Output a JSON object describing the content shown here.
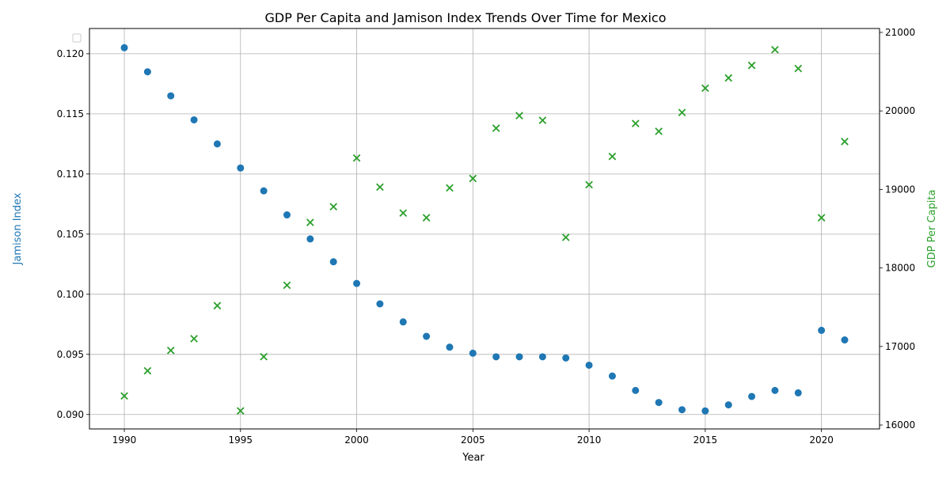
{
  "chart_data": {
    "type": "scatter",
    "title": "GDP Per Capita and Jamison Index Trends Over Time for Mexico",
    "xlabel": "Year",
    "ylabel_left": "Jamison Index",
    "ylabel_right": "GDP Per Capita",
    "xlim": [
      1988.5,
      2022.5
    ],
    "ylim_left": [
      0.0888,
      0.1221
    ],
    "ylim_right": [
      15950,
      21050
    ],
    "x_ticks": [
      1990,
      1995,
      2000,
      2005,
      2010,
      2015,
      2020
    ],
    "x_tick_labels": [
      "1990",
      "1995",
      "2000",
      "2005",
      "2010",
      "2015",
      "2020"
    ],
    "y_left_ticks": [
      0.09,
      0.095,
      0.1,
      0.105,
      0.11,
      0.115,
      0.12
    ],
    "y_left_tick_labels": [
      "0.090",
      "0.095",
      "0.100",
      "0.105",
      "0.110",
      "0.115",
      "0.120"
    ],
    "y_right_ticks": [
      16000,
      17000,
      18000,
      19000,
      20000,
      21000
    ],
    "y_right_tick_labels": [
      "16000",
      "17000",
      "18000",
      "19000",
      "20000",
      "21000"
    ],
    "grid": true,
    "legend": "top-left (empty)",
    "x": [
      1990,
      1991,
      1992,
      1993,
      1994,
      1995,
      1996,
      1997,
      1998,
      1999,
      2000,
      2001,
      2002,
      2003,
      2004,
      2005,
      2006,
      2007,
      2008,
      2009,
      2010,
      2011,
      2012,
      2013,
      2014,
      2015,
      2016,
      2017,
      2018,
      2019,
      2020,
      2021
    ],
    "series": [
      {
        "name": "Jamison Index",
        "axis": "left",
        "marker": "circle",
        "color": "#1f77b4",
        "values": [
          0.1205,
          0.1185,
          0.1165,
          0.1145,
          0.1125,
          0.1105,
          0.1086,
          0.1066,
          0.1046,
          0.1027,
          0.1009,
          0.0992,
          0.0977,
          0.0965,
          0.0956,
          0.0951,
          0.0948,
          0.0948,
          0.0948,
          0.0947,
          0.0941,
          0.0932,
          0.092,
          0.091,
          0.0904,
          0.0903,
          0.0908,
          0.0915,
          0.092,
          0.0918,
          0.097,
          0.0962
        ]
      },
      {
        "name": "GDP Per Capita",
        "axis": "right",
        "marker": "x",
        "color": "#2ca02c",
        "values": [
          16370,
          16690,
          16950,
          17100,
          17520,
          16180,
          16870,
          17780,
          18580,
          18780,
          19400,
          19030,
          18700,
          18640,
          19020,
          19140,
          19780,
          19940,
          19880,
          18390,
          19060,
          19420,
          19840,
          19740,
          19980,
          20290,
          20420,
          20580,
          20780,
          20540,
          18640,
          19610
        ]
      }
    ]
  }
}
